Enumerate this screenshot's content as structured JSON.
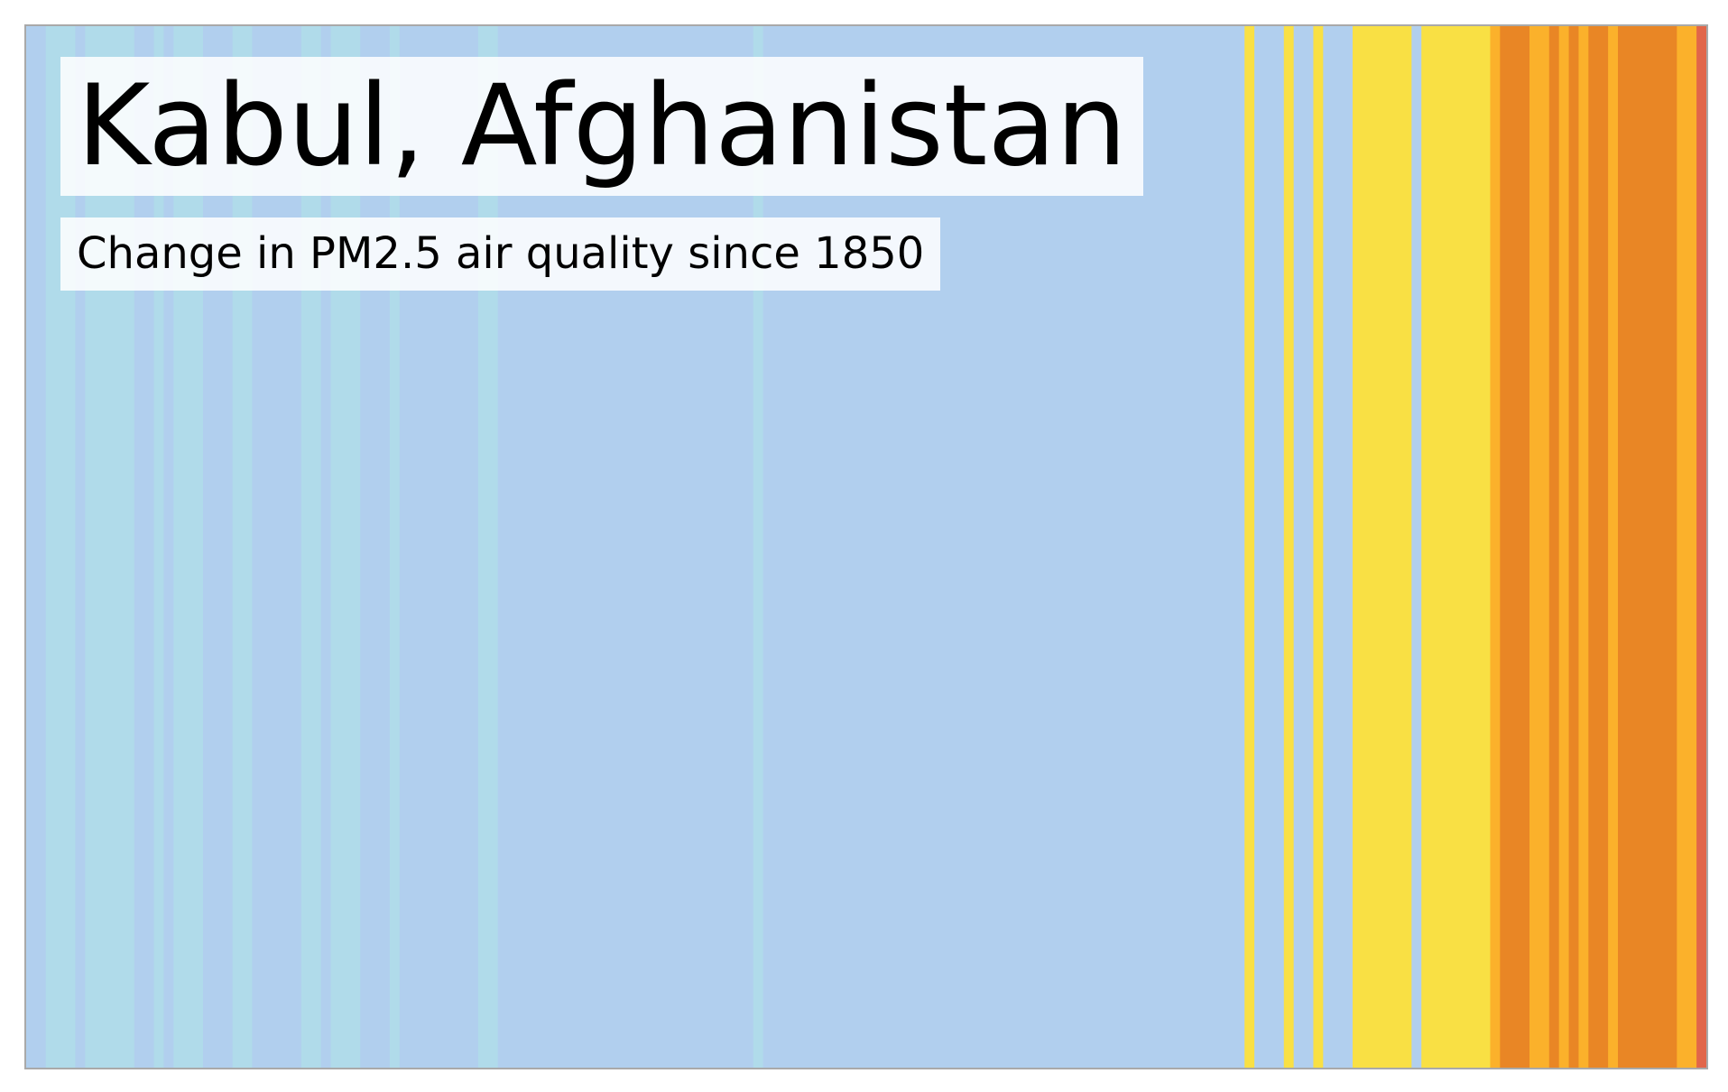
{
  "chart_data": {
    "type": "heatmap",
    "title": "Kabul, Afghanistan",
    "subtitle": "Change in PM2.5 air quality since 1850",
    "x_start": 1850,
    "x_end": 2021,
    "grid": false,
    "legend": "none",
    "palette": {
      "teal": "#b0dbea",
      "blue": "#b1cfee",
      "yellow": "#f9e044",
      "amber": "#fbb12b",
      "orange": "#e98625",
      "red": "#e1664a"
    },
    "stripes": [
      {
        "from": 1850,
        "to": 1852,
        "color": "blue"
      },
      {
        "from": 1852,
        "to": 1855,
        "color": "teal"
      },
      {
        "from": 1855,
        "to": 1856,
        "color": "blue"
      },
      {
        "from": 1856,
        "to": 1861,
        "color": "teal"
      },
      {
        "from": 1861,
        "to": 1863,
        "color": "blue"
      },
      {
        "from": 1863,
        "to": 1864,
        "color": "teal"
      },
      {
        "from": 1864,
        "to": 1865,
        "color": "blue"
      },
      {
        "from": 1865,
        "to": 1868,
        "color": "teal"
      },
      {
        "from": 1868,
        "to": 1871,
        "color": "blue"
      },
      {
        "from": 1871,
        "to": 1873,
        "color": "teal"
      },
      {
        "from": 1873,
        "to": 1878,
        "color": "blue"
      },
      {
        "from": 1878,
        "to": 1880,
        "color": "teal"
      },
      {
        "from": 1880,
        "to": 1881,
        "color": "blue"
      },
      {
        "from": 1881,
        "to": 1884,
        "color": "teal"
      },
      {
        "from": 1884,
        "to": 1887,
        "color": "blue"
      },
      {
        "from": 1887,
        "to": 1888,
        "color": "teal"
      },
      {
        "from": 1888,
        "to": 1896,
        "color": "blue"
      },
      {
        "from": 1896,
        "to": 1898,
        "color": "teal"
      },
      {
        "from": 1898,
        "to": 1924,
        "color": "blue"
      },
      {
        "from": 1924,
        "to": 1925,
        "color": "teal"
      },
      {
        "from": 1925,
        "to": 1974,
        "color": "blue"
      },
      {
        "from": 1974,
        "to": 1975,
        "color": "yellow"
      },
      {
        "from": 1975,
        "to": 1978,
        "color": "blue"
      },
      {
        "from": 1978,
        "to": 1979,
        "color": "yellow"
      },
      {
        "from": 1979,
        "to": 1981,
        "color": "blue"
      },
      {
        "from": 1981,
        "to": 1982,
        "color": "yellow"
      },
      {
        "from": 1982,
        "to": 1985,
        "color": "blue"
      },
      {
        "from": 1985,
        "to": 1991,
        "color": "yellow"
      },
      {
        "from": 1991,
        "to": 1992,
        "color": "blue"
      },
      {
        "from": 1992,
        "to": 1999,
        "color": "yellow"
      },
      {
        "from": 1999,
        "to": 2000,
        "color": "amber"
      },
      {
        "from": 2000,
        "to": 2003,
        "color": "orange"
      },
      {
        "from": 2003,
        "to": 2005,
        "color": "amber"
      },
      {
        "from": 2005,
        "to": 2006,
        "color": "orange"
      },
      {
        "from": 2006,
        "to": 2007,
        "color": "amber"
      },
      {
        "from": 2007,
        "to": 2008,
        "color": "orange"
      },
      {
        "from": 2008,
        "to": 2009,
        "color": "amber"
      },
      {
        "from": 2009,
        "to": 2011,
        "color": "orange"
      },
      {
        "from": 2011,
        "to": 2012,
        "color": "amber"
      },
      {
        "from": 2012,
        "to": 2018,
        "color": "orange"
      },
      {
        "from": 2018,
        "to": 2020,
        "color": "amber"
      },
      {
        "from": 2020,
        "to": 2021,
        "color": "red"
      }
    ]
  }
}
